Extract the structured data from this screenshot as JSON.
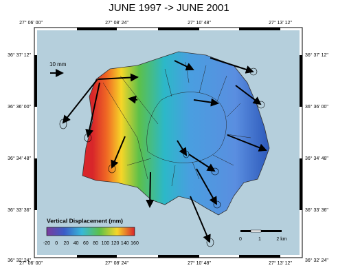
{
  "title": "JUNE 1997  ->  JUNE 2001",
  "longitude_labels": [
    "27° 06' 00\"",
    "27° 08' 24\"",
    "27° 10' 48\"",
    "27° 13' 12\""
  ],
  "latitude_labels": [
    "36° 37' 12\"",
    "36° 36' 00\"",
    "36° 34' 48\"",
    "36° 33' 36\"",
    "36° 32' 24\""
  ],
  "reference_arrow_label": "10 mm",
  "colorbar": {
    "title": "Vertical Displacement (mm)",
    "ticks": [
      "-20",
      "0",
      "20",
      "40",
      "60",
      "80",
      "100",
      "120",
      "140",
      "160"
    ]
  },
  "scale_bar": {
    "labels": [
      "0",
      "1",
      "2 km"
    ]
  }
}
